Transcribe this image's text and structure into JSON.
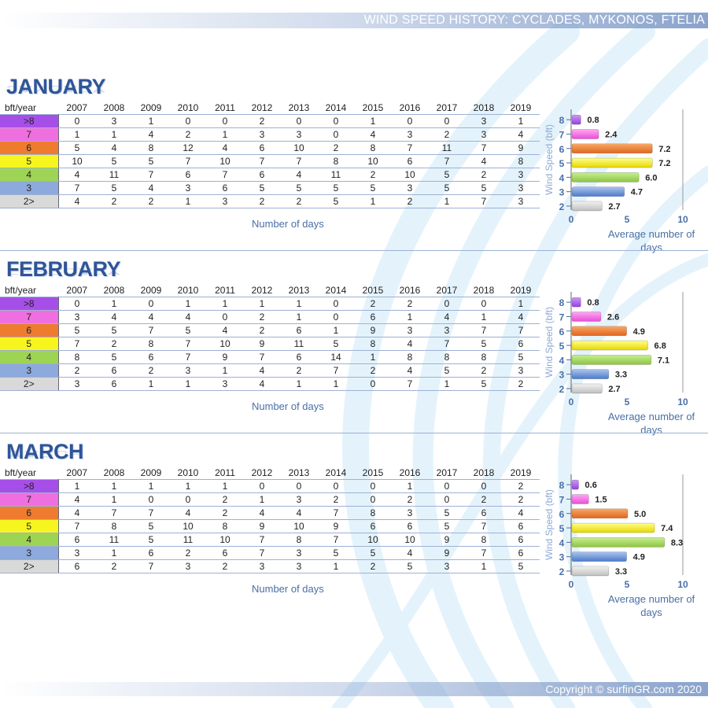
{
  "header": {
    "title": "WIND SPEED HISTORY: CYCLADES, MYKONOS, FTELIA"
  },
  "footer": {
    "copyright": "Copyright © surfinGR.com 2020"
  },
  "table_labels": {
    "corner": "bft/year",
    "xlabel": "Number of days"
  },
  "colors": {
    "bft_8": "#a64fe8",
    "bft_7": "#f06fe0",
    "bft_6": "#ef7b2f",
    "bft_5": "#f6f61e",
    "bft_4": "#9ed453",
    "bft_3": "#8ea9db",
    "bft_2": "#d9d9d9"
  },
  "chart_data": [
    {
      "type": "table",
      "title": "JANUARY",
      "columns": [
        "2007",
        "2008",
        "2009",
        "2010",
        "2011",
        "2012",
        "2013",
        "2014",
        "2015",
        "2016",
        "2017",
        "2018",
        "2019"
      ],
      "rows": [
        {
          "label": ">8",
          "values": [
            0,
            3,
            1,
            0,
            0,
            2,
            0,
            0,
            1,
            0,
            0,
            3,
            1
          ]
        },
        {
          "label": "7",
          "values": [
            1,
            1,
            4,
            2,
            1,
            3,
            3,
            0,
            4,
            3,
            2,
            3,
            4
          ]
        },
        {
          "label": "6",
          "values": [
            5,
            4,
            8,
            12,
            4,
            6,
            10,
            2,
            8,
            7,
            11,
            7,
            9
          ]
        },
        {
          "label": "5",
          "values": [
            10,
            5,
            5,
            7,
            10,
            7,
            7,
            8,
            10,
            6,
            7,
            4,
            8
          ]
        },
        {
          "label": "4",
          "values": [
            4,
            11,
            7,
            6,
            7,
            6,
            4,
            11,
            2,
            10,
            5,
            2,
            3
          ]
        },
        {
          "label": "3",
          "values": [
            7,
            5,
            4,
            3,
            6,
            5,
            5,
            5,
            5,
            3,
            5,
            5,
            3
          ]
        },
        {
          "label": "2>",
          "values": [
            4,
            2,
            2,
            1,
            3,
            2,
            2,
            5,
            1,
            2,
            1,
            7,
            3
          ]
        }
      ],
      "xlabel": "Number of days"
    },
    {
      "type": "bar",
      "orientation": "horizontal",
      "categories": [
        "8",
        "7",
        "6",
        "5",
        "4",
        "3",
        "2"
      ],
      "values": [
        0.8,
        2.4,
        7.2,
        7.2,
        6.0,
        4.7,
        2.7
      ],
      "value_labels": [
        "0.8",
        "2.4",
        "7.2",
        "7.2",
        "6.0",
        "4.7",
        "2.7"
      ],
      "xlabel": "Average number of days",
      "ylabel": "Wind Speed (bft)",
      "xlim": [
        0,
        10
      ],
      "xticks": [
        "0",
        "5",
        "10"
      ]
    },
    {
      "type": "table",
      "title": "FEBRUARY",
      "columns": [
        "2007",
        "2008",
        "2009",
        "2010",
        "2011",
        "2012",
        "2013",
        "2014",
        "2015",
        "2016",
        "2017",
        "2018",
        "2019"
      ],
      "rows": [
        {
          "label": ">8",
          "values": [
            0,
            1,
            0,
            1,
            1,
            1,
            1,
            0,
            2,
            2,
            0,
            0,
            1
          ]
        },
        {
          "label": "7",
          "values": [
            3,
            4,
            4,
            4,
            0,
            2,
            1,
            0,
            6,
            1,
            4,
            1,
            4
          ]
        },
        {
          "label": "6",
          "values": [
            5,
            5,
            7,
            5,
            4,
            2,
            6,
            1,
            9,
            3,
            3,
            7,
            7
          ]
        },
        {
          "label": "5",
          "values": [
            7,
            2,
            8,
            7,
            10,
            9,
            11,
            5,
            8,
            4,
            7,
            5,
            6
          ]
        },
        {
          "label": "4",
          "values": [
            8,
            5,
            6,
            7,
            9,
            7,
            6,
            14,
            1,
            8,
            8,
            8,
            5
          ]
        },
        {
          "label": "3",
          "values": [
            2,
            6,
            2,
            3,
            1,
            4,
            2,
            7,
            2,
            4,
            5,
            2,
            3
          ]
        },
        {
          "label": "2>",
          "values": [
            3,
            6,
            1,
            1,
            3,
            4,
            1,
            1,
            0,
            7,
            1,
            5,
            2
          ]
        }
      ],
      "xlabel": "Number of days"
    },
    {
      "type": "bar",
      "orientation": "horizontal",
      "categories": [
        "8",
        "7",
        "6",
        "5",
        "4",
        "3",
        "2"
      ],
      "values": [
        0.8,
        2.6,
        4.9,
        6.8,
        7.1,
        3.3,
        2.7
      ],
      "value_labels": [
        "0.8",
        "2.6",
        "4.9",
        "6.8",
        "7.1",
        "3.3",
        "2.7"
      ],
      "xlabel": "Average number of days",
      "ylabel": "Wind Speed (bft)",
      "xlim": [
        0,
        10
      ],
      "xticks": [
        "0",
        "5",
        "10"
      ]
    },
    {
      "type": "table",
      "title": "MARCH",
      "columns": [
        "2007",
        "2008",
        "2009",
        "2010",
        "2011",
        "2012",
        "2013",
        "2014",
        "2015",
        "2016",
        "2017",
        "2018",
        "2019"
      ],
      "rows": [
        {
          "label": ">8",
          "values": [
            1,
            1,
            1,
            1,
            1,
            0,
            0,
            0,
            0,
            1,
            0,
            0,
            2
          ]
        },
        {
          "label": "7",
          "values": [
            4,
            1,
            0,
            0,
            2,
            1,
            3,
            2,
            0,
            2,
            0,
            2,
            2
          ]
        },
        {
          "label": "6",
          "values": [
            4,
            7,
            7,
            4,
            2,
            4,
            4,
            7,
            8,
            3,
            5,
            6,
            4
          ]
        },
        {
          "label": "5",
          "values": [
            7,
            8,
            5,
            10,
            8,
            9,
            10,
            9,
            6,
            6,
            5,
            7,
            6
          ]
        },
        {
          "label": "4",
          "values": [
            6,
            11,
            5,
            11,
            10,
            7,
            8,
            7,
            10,
            10,
            9,
            8,
            6
          ]
        },
        {
          "label": "3",
          "values": [
            3,
            1,
            6,
            2,
            6,
            7,
            3,
            5,
            5,
            4,
            9,
            7,
            6
          ]
        },
        {
          "label": "2>",
          "values": [
            6,
            2,
            7,
            3,
            2,
            3,
            3,
            1,
            2,
            5,
            3,
            1,
            5
          ]
        }
      ],
      "xlabel": "Number of days"
    },
    {
      "type": "bar",
      "orientation": "horizontal",
      "categories": [
        "8",
        "7",
        "6",
        "5",
        "4",
        "3",
        "2"
      ],
      "values": [
        0.6,
        1.5,
        5.0,
        7.4,
        8.3,
        4.9,
        3.3
      ],
      "value_labels": [
        "0.6",
        "1.5",
        "5.0",
        "7.4",
        "8.3",
        "4.9",
        "3.3"
      ],
      "xlabel": "Average number of days",
      "ylabel": "Wind Speed (bft)",
      "xlim": [
        0,
        10
      ],
      "xticks": [
        "0",
        "5",
        "10"
      ]
    }
  ]
}
